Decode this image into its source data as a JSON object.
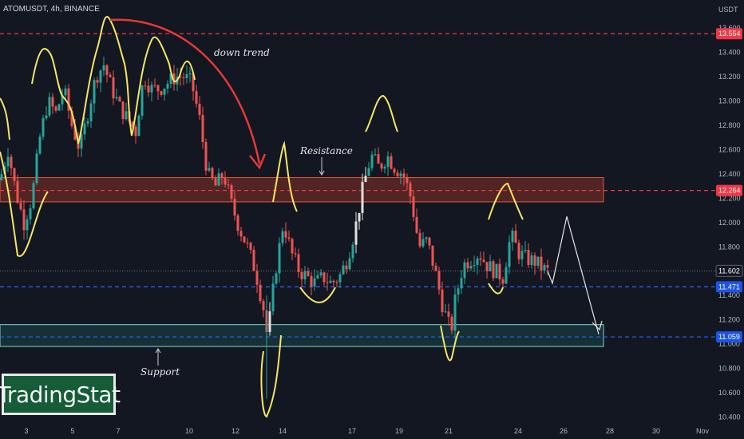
{
  "header": {
    "symbol": "ATOMUSDT, 4h, BINANCE"
  },
  "logo": {
    "text": "TradingStat"
  },
  "annotations": {
    "down_trend": "down trend",
    "resistance": "Resistance",
    "support": "Support"
  },
  "price_axis": {
    "currency": "USDT",
    "range": [
      10.35,
      13.7
    ],
    "ticks": [
      13.6,
      13.4,
      13.2,
      13.0,
      12.8,
      12.6,
      12.4,
      12.2,
      12.0,
      11.8,
      11.6,
      11.4,
      11.2,
      11.0,
      10.8,
      10.6,
      10.4
    ],
    "tick_labels": [
      "13.600",
      "13.400",
      "13.200",
      "13.000",
      "12.800",
      "12.600",
      "12.400",
      "12.200",
      "12.000",
      "11.800",
      "11.600",
      "11.400",
      "11.200",
      "11.000",
      "10.800",
      "10.600",
      "10.400"
    ]
  },
  "time_axis": {
    "labels": [
      "3",
      "5",
      "7",
      "10",
      "12",
      "14",
      "17",
      "19",
      "21",
      "24",
      "26",
      "28",
      "30",
      "Nov"
    ]
  },
  "levels": [
    {
      "name": "top-resistance",
      "price": 13.554,
      "label": "13.554",
      "color": "#f23645",
      "style": "dashed"
    },
    {
      "name": "resistance",
      "price": 12.264,
      "label": "12.264",
      "color": "#f23645",
      "style": "dashed"
    },
    {
      "name": "current",
      "price": 11.602,
      "label": "11.602",
      "color": "#9598a1",
      "style": "dotted"
    },
    {
      "name": "support-high",
      "price": 11.471,
      "label": "11.471",
      "color": "#2962ff",
      "style": "dashed"
    },
    {
      "name": "support-low",
      "price": 11.059,
      "label": "11.059",
      "color": "#2962ff",
      "style": "dashed"
    }
  ],
  "colors": {
    "up": "#26a69a",
    "down": "#ef5350",
    "highlight": "#e0e0e0",
    "handdrawn": "#f5e663",
    "trend": "#e53935",
    "projection": "#e6e6e6"
  },
  "chart_data": {
    "type": "candlestick",
    "timeframe": "4h",
    "symbol": "ATOMUSDT",
    "exchange": "BINANCE",
    "ylim": [
      10.35,
      13.7
    ],
    "zones": [
      {
        "name": "resistance-zone",
        "from": 12.17,
        "to": 12.37
      },
      {
        "name": "support-zone",
        "from": 10.98,
        "to": 11.16
      }
    ],
    "close_path": [
      [
        0,
        12.35
      ],
      [
        10,
        12.6
      ],
      [
        20,
        12.25
      ],
      [
        30,
        12.0
      ],
      [
        40,
        12.2
      ],
      [
        50,
        12.7
      ],
      [
        60,
        13.0
      ],
      [
        70,
        12.9
      ],
      [
        80,
        13.1
      ],
      [
        90,
        12.8
      ],
      [
        100,
        12.6
      ],
      [
        110,
        12.9
      ],
      [
        120,
        13.2
      ],
      [
        130,
        13.3
      ],
      [
        140,
        13.1
      ],
      [
        150,
        12.95
      ],
      [
        160,
        12.85
      ],
      [
        170,
        12.75
      ],
      [
        180,
        13.2
      ],
      [
        190,
        13.1
      ],
      [
        200,
        13.1
      ],
      [
        210,
        13.15
      ],
      [
        220,
        13.2
      ],
      [
        230,
        13.2
      ],
      [
        240,
        13.15
      ],
      [
        250,
        12.85
      ],
      [
        260,
        12.4
      ],
      [
        270,
        12.3
      ],
      [
        280,
        12.4
      ],
      [
        290,
        12.15
      ],
      [
        300,
        11.95
      ],
      [
        310,
        11.8
      ],
      [
        320,
        11.6
      ],
      [
        330,
        11.3
      ],
      [
        335,
        11.05
      ],
      [
        345,
        11.6
      ],
      [
        355,
        12.0
      ],
      [
        365,
        11.75
      ],
      [
        375,
        11.6
      ],
      [
        385,
        11.55
      ],
      [
        395,
        11.5
      ],
      [
        405,
        11.55
      ],
      [
        415,
        11.5
      ],
      [
        425,
        11.55
      ],
      [
        435,
        11.7
      ],
      [
        445,
        11.95
      ],
      [
        455,
        12.3
      ],
      [
        465,
        12.55
      ],
      [
        475,
        12.45
      ],
      [
        485,
        12.55
      ],
      [
        495,
        12.45
      ],
      [
        505,
        12.4
      ],
      [
        515,
        12.2
      ],
      [
        525,
        11.8
      ],
      [
        535,
        11.85
      ],
      [
        545,
        11.6
      ],
      [
        555,
        11.3
      ],
      [
        565,
        11.1
      ],
      [
        570,
        11.35
      ],
      [
        580,
        11.65
      ],
      [
        590,
        11.7
      ],
      [
        600,
        11.75
      ],
      [
        610,
        11.65
      ],
      [
        620,
        11.6
      ],
      [
        630,
        11.55
      ],
      [
        640,
        11.9
      ],
      [
        650,
        11.75
      ],
      [
        660,
        11.7
      ],
      [
        670,
        11.68
      ],
      [
        680,
        11.62
      ],
      [
        686,
        11.6
      ]
    ],
    "projection": [
      [
        686,
        11.6
      ],
      [
        692,
        11.5
      ],
      [
        710,
        12.05
      ],
      [
        750,
        11.08
      ]
    ]
  }
}
